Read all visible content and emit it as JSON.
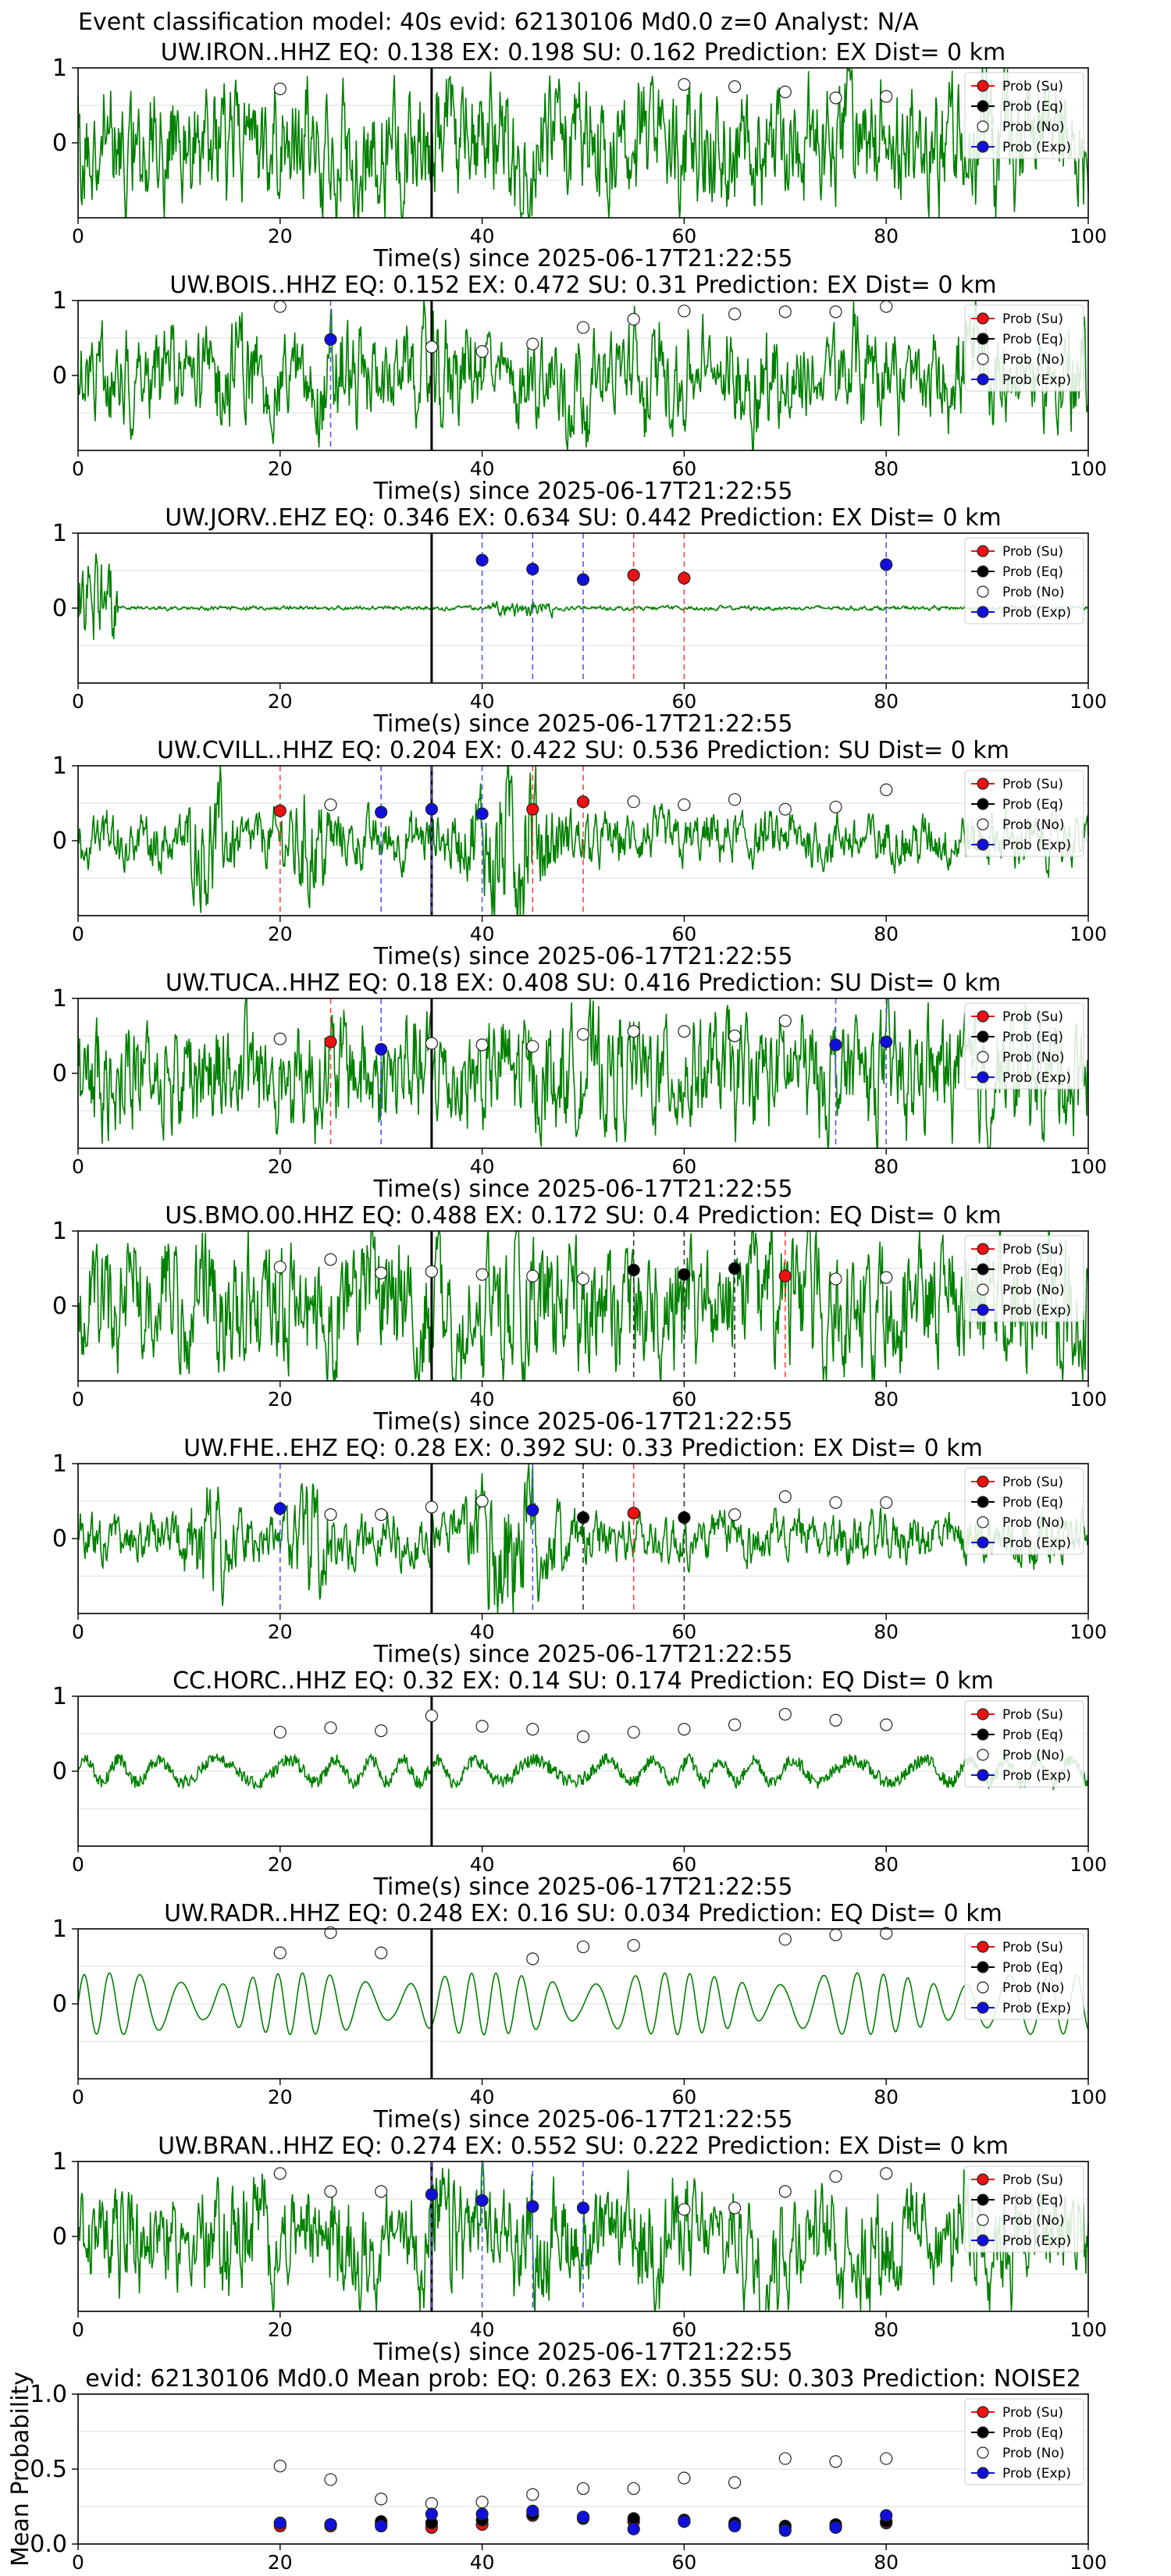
{
  "suptitle": "Event classification model: 40s evid: 62130106 Md0.0 z=0 Analyst: N/A",
  "colors": {
    "trace": "#008000",
    "su": "#ee1111",
    "eq": "#000000",
    "no": "#ffffff",
    "exp": "#1010dd",
    "pick": "#000000",
    "line_su": "#ff4444",
    "line_eq": "#333333",
    "line_exp": "#5555ff",
    "grid": "#dddddd"
  },
  "legend": [
    "Prob (Su)",
    "Prob (Eq)",
    "Prob (No)",
    "Prob (Exp)"
  ],
  "chart_data": [
    {
      "type": "line",
      "title": "UW.IRON..HHZ   EQ: 0.138  EX: 0.198  SU: 0.162   Prediction: EX    Dist= 0 km",
      "xlabel": "Time(s) since 2025-06-17T21:22:55",
      "ylabel": "",
      "xlim": [
        0,
        100
      ],
      "ylim": [
        -1,
        1
      ],
      "xticks": [
        0,
        20,
        40,
        60,
        80,
        100
      ],
      "yticks": [
        0,
        1
      ],
      "pick_time": 35,
      "trace_style": "broadband",
      "trace_amp": 0.75,
      "trace_seed": 11,
      "points": [
        [
          20,
          "no",
          0.72
        ],
        [
          60,
          "no",
          0.78
        ],
        [
          65,
          "no",
          0.75
        ],
        [
          70,
          "no",
          0.68
        ],
        [
          75,
          "no",
          0.6
        ],
        [
          80,
          "no",
          0.62
        ]
      ]
    },
    {
      "type": "line",
      "title": "UW.BOIS..HHZ   EQ: 0.152  EX: 0.472  SU: 0.31   Prediction: EX    Dist= 0 km",
      "xlabel": "Time(s) since 2025-06-17T21:22:55",
      "ylabel": "",
      "xlim": [
        0,
        100
      ],
      "ylim": [
        -1,
        1
      ],
      "xticks": [
        0,
        20,
        40,
        60,
        80,
        100
      ],
      "yticks": [
        0,
        1
      ],
      "pick_time": 35,
      "trace_style": "mixed",
      "trace_amp": 0.7,
      "trace_seed": 23,
      "points": [
        [
          20,
          "no",
          0.92
        ],
        [
          25,
          "exp",
          0.48
        ],
        [
          35,
          "no",
          0.38
        ],
        [
          40,
          "no",
          0.32
        ],
        [
          45,
          "no",
          0.42
        ],
        [
          50,
          "no",
          0.64
        ],
        [
          55,
          "no",
          0.75
        ],
        [
          60,
          "no",
          0.86
        ],
        [
          65,
          "no",
          0.82
        ],
        [
          70,
          "no",
          0.85
        ],
        [
          75,
          "no",
          0.85
        ],
        [
          80,
          "no",
          0.92
        ]
      ]
    },
    {
      "type": "line",
      "title": "UW.JORV..EHZ   EQ: 0.346  EX: 0.634  SU: 0.442   Prediction: EX    Dist= 0 km",
      "xlabel": "Time(s) since 2025-06-17T21:22:55",
      "ylabel": "",
      "xlim": [
        0,
        100
      ],
      "ylim": [
        -1,
        1
      ],
      "xticks": [
        0,
        20,
        40,
        60,
        80,
        100
      ],
      "yticks": [
        0,
        1
      ],
      "pick_time": 35,
      "trace_style": "quiet",
      "trace_amp": 0.6,
      "trace_seed": 37,
      "points": [
        [
          40,
          "exp",
          0.64
        ],
        [
          45,
          "exp",
          0.52
        ],
        [
          50,
          "exp",
          0.38
        ],
        [
          55,
          "su",
          0.44
        ],
        [
          60,
          "su",
          0.4
        ],
        [
          80,
          "exp",
          0.58
        ]
      ]
    },
    {
      "type": "line",
      "title": "UW.CVILL..HHZ   EQ: 0.204  EX: 0.422  SU: 0.536   Prediction: SU    Dist= 0 km",
      "xlabel": "Time(s) since 2025-06-17T21:22:55",
      "ylabel": "",
      "xlim": [
        0,
        100
      ],
      "ylim": [
        -1,
        1
      ],
      "xticks": [
        0,
        20,
        40,
        60,
        80,
        100
      ],
      "yticks": [
        0,
        1
      ],
      "pick_time": 35,
      "trace_style": "burst",
      "trace_amp": 0.9,
      "trace_seed": 41,
      "points": [
        [
          20,
          "su",
          0.4
        ],
        [
          25,
          "no",
          0.48
        ],
        [
          30,
          "exp",
          0.38
        ],
        [
          35,
          "exp",
          0.42
        ],
        [
          40,
          "exp",
          0.36
        ],
        [
          45,
          "su",
          0.42
        ],
        [
          50,
          "su",
          0.52
        ],
        [
          55,
          "no",
          0.52
        ],
        [
          60,
          "no",
          0.48
        ],
        [
          65,
          "no",
          0.55
        ],
        [
          70,
          "no",
          0.42
        ],
        [
          75,
          "no",
          0.45
        ],
        [
          80,
          "no",
          0.68
        ]
      ]
    },
    {
      "type": "line",
      "title": "UW.TUCA..HHZ   EQ: 0.18  EX: 0.408  SU: 0.416   Prediction: SU    Dist= 0 km",
      "xlabel": "Time(s) since 2025-06-17T21:22:55",
      "ylabel": "",
      "xlim": [
        0,
        100
      ],
      "ylim": [
        -1,
        1
      ],
      "xticks": [
        0,
        20,
        40,
        60,
        80,
        100
      ],
      "yticks": [
        0,
        1
      ],
      "pick_time": 35,
      "trace_style": "broadband",
      "trace_amp": 0.7,
      "trace_seed": 53,
      "points": [
        [
          20,
          "no",
          0.46
        ],
        [
          25,
          "su",
          0.42
        ],
        [
          30,
          "exp",
          0.32
        ],
        [
          35,
          "no",
          0.4
        ],
        [
          40,
          "no",
          0.38
        ],
        [
          45,
          "no",
          0.36
        ],
        [
          50,
          "no",
          0.52
        ],
        [
          55,
          "no",
          0.56
        ],
        [
          60,
          "no",
          0.56
        ],
        [
          65,
          "no",
          0.5
        ],
        [
          70,
          "no",
          0.7
        ],
        [
          75,
          "exp",
          0.38
        ],
        [
          80,
          "exp",
          0.42
        ]
      ]
    },
    {
      "type": "line",
      "title": "US.BMO.00.HHZ   EQ: 0.488  EX: 0.172  SU: 0.4   Prediction: EQ    Dist= 0 km",
      "xlabel": "Time(s) since 2025-06-17T21:22:55",
      "ylabel": "",
      "xlim": [
        0,
        100
      ],
      "ylim": [
        -1,
        1
      ],
      "xticks": [
        0,
        20,
        40,
        60,
        80,
        100
      ],
      "yticks": [
        0,
        1
      ],
      "pick_time": 35,
      "trace_style": "broadband",
      "trace_amp": 0.8,
      "trace_seed": 67,
      "points": [
        [
          20,
          "no",
          0.52
        ],
        [
          25,
          "no",
          0.62
        ],
        [
          30,
          "no",
          0.44
        ],
        [
          35,
          "no",
          0.46
        ],
        [
          40,
          "no",
          0.42
        ],
        [
          45,
          "no",
          0.4
        ],
        [
          50,
          "no",
          0.36
        ],
        [
          55,
          "eq",
          0.48
        ],
        [
          60,
          "eq",
          0.42
        ],
        [
          65,
          "eq",
          0.5
        ],
        [
          70,
          "su",
          0.4
        ],
        [
          75,
          "no",
          0.36
        ],
        [
          80,
          "no",
          0.38
        ]
      ]
    },
    {
      "type": "line",
      "title": "UW.FHE..EHZ   EQ: 0.28  EX: 0.392  SU: 0.33   Prediction: EX    Dist= 0 km",
      "xlabel": "Time(s) since 2025-06-17T21:22:55",
      "ylabel": "",
      "xlim": [
        0,
        100
      ],
      "ylim": [
        -1,
        1
      ],
      "xticks": [
        0,
        20,
        40,
        60,
        80,
        100
      ],
      "yticks": [
        0,
        1
      ],
      "pick_time": 35,
      "trace_style": "burst",
      "trace_amp": 0.85,
      "trace_seed": 79,
      "points": [
        [
          20,
          "exp",
          0.4
        ],
        [
          25,
          "no",
          0.32
        ],
        [
          30,
          "no",
          0.32
        ],
        [
          35,
          "no",
          0.42
        ],
        [
          40,
          "no",
          0.5
        ],
        [
          45,
          "exp",
          0.38
        ],
        [
          50,
          "eq",
          0.28
        ],
        [
          55,
          "su",
          0.34
        ],
        [
          60,
          "eq",
          0.28
        ],
        [
          65,
          "no",
          0.32
        ],
        [
          70,
          "no",
          0.56
        ],
        [
          75,
          "no",
          0.48
        ],
        [
          80,
          "no",
          0.48
        ]
      ]
    },
    {
      "type": "line",
      "title": "CC.HORC..HHZ   EQ: 0.32  EX: 0.14  SU: 0.174   Prediction: EQ    Dist= 0 km",
      "xlabel": "Time(s) since 2025-06-17T21:22:55",
      "ylabel": "",
      "xlim": [
        0,
        100
      ],
      "ylim": [
        -1,
        1
      ],
      "xticks": [
        0,
        20,
        40,
        60,
        80,
        100
      ],
      "yticks": [
        0,
        1
      ],
      "pick_time": 35,
      "trace_style": "swell",
      "trace_amp": 0.5,
      "trace_seed": 83,
      "points": [
        [
          20,
          "no",
          0.52
        ],
        [
          25,
          "no",
          0.58
        ],
        [
          30,
          "no",
          0.54
        ],
        [
          35,
          "no",
          0.74
        ],
        [
          40,
          "no",
          0.6
        ],
        [
          45,
          "no",
          0.56
        ],
        [
          50,
          "no",
          0.46
        ],
        [
          55,
          "no",
          0.52
        ],
        [
          60,
          "no",
          0.56
        ],
        [
          65,
          "no",
          0.62
        ],
        [
          70,
          "no",
          0.76
        ],
        [
          75,
          "no",
          0.68
        ],
        [
          80,
          "no",
          0.62
        ]
      ]
    },
    {
      "type": "line",
      "title": "UW.RADR..HHZ   EQ: 0.248  EX: 0.16  SU: 0.034   Prediction: EQ    Dist= 0 km",
      "xlabel": "Time(s) since 2025-06-17T21:22:55",
      "ylabel": "",
      "xlim": [
        0,
        100
      ],
      "ylim": [
        -1,
        1
      ],
      "xticks": [
        0,
        20,
        40,
        60,
        80,
        100
      ],
      "yticks": [
        0,
        1
      ],
      "pick_time": 35,
      "trace_style": "smooth",
      "trace_amp": 0.75,
      "trace_seed": 97,
      "points": [
        [
          20,
          "no",
          0.68
        ],
        [
          25,
          "no",
          0.95
        ],
        [
          30,
          "no",
          0.68
        ],
        [
          45,
          "no",
          0.6
        ],
        [
          50,
          "no",
          0.76
        ],
        [
          55,
          "no",
          0.78
        ],
        [
          70,
          "no",
          0.86
        ],
        [
          75,
          "no",
          0.92
        ],
        [
          80,
          "no",
          0.94
        ]
      ]
    },
    {
      "type": "line",
      "title": "UW.BRAN..HHZ   EQ: 0.274  EX: 0.552  SU: 0.222   Prediction: EX    Dist= 0 km",
      "xlabel": "Time(s) since 2025-06-17T21:22:55",
      "ylabel": "",
      "xlim": [
        0,
        100
      ],
      "ylim": [
        -1,
        1
      ],
      "xticks": [
        0,
        20,
        40,
        60,
        80,
        100
      ],
      "yticks": [
        0,
        1
      ],
      "pick_time": 35,
      "trace_style": "mixed",
      "trace_amp": 0.75,
      "trace_seed": 101,
      "points": [
        [
          20,
          "no",
          0.84
        ],
        [
          25,
          "no",
          0.6
        ],
        [
          30,
          "no",
          0.6
        ],
        [
          35,
          "exp",
          0.56
        ],
        [
          40,
          "exp",
          0.48
        ],
        [
          45,
          "exp",
          0.4
        ],
        [
          50,
          "exp",
          0.38
        ],
        [
          60,
          "no",
          0.36
        ],
        [
          65,
          "no",
          0.38
        ],
        [
          70,
          "no",
          0.6
        ],
        [
          75,
          "no",
          0.8
        ],
        [
          80,
          "no",
          0.84
        ]
      ]
    },
    {
      "type": "scatter",
      "title": "evid: 62130106  Md0.0   Mean prob:   EQ: 0.263  EX: 0.355  SU: 0.303   Prediction: NOISE2",
      "xlabel": "",
      "ylabel": "Mean Probability",
      "xlim": [
        0,
        100
      ],
      "ylim": [
        0,
        1
      ],
      "xticks": [
        0,
        20,
        40,
        60,
        80,
        100
      ],
      "yticks": [
        0.0,
        0.5,
        1.0
      ],
      "series": [
        {
          "name": "Prob (Su)",
          "kind": "su",
          "x": [
            20,
            25,
            30,
            35,
            40,
            45,
            50,
            55,
            60,
            65,
            70,
            75,
            80
          ],
          "y": [
            0.12,
            0.12,
            0.13,
            0.11,
            0.13,
            0.19,
            0.18,
            0.15,
            0.15,
            0.13,
            0.11,
            0.12,
            0.14
          ]
        },
        {
          "name": "Prob (Eq)",
          "kind": "eq",
          "x": [
            20,
            25,
            30,
            35,
            40,
            45,
            50,
            55,
            60,
            65,
            70,
            75,
            80
          ],
          "y": [
            0.14,
            0.13,
            0.15,
            0.14,
            0.16,
            0.2,
            0.17,
            0.17,
            0.16,
            0.14,
            0.12,
            0.13,
            0.15
          ]
        },
        {
          "name": "Prob (No)",
          "kind": "no",
          "x": [
            20,
            25,
            30,
            35,
            40,
            45,
            50,
            55,
            60,
            65,
            70,
            75,
            80
          ],
          "y": [
            0.52,
            0.43,
            0.3,
            0.27,
            0.28,
            0.33,
            0.37,
            0.37,
            0.44,
            0.41,
            0.57,
            0.55,
            0.57
          ]
        },
        {
          "name": "Prob (Exp)",
          "kind": "exp",
          "x": [
            20,
            25,
            30,
            35,
            40,
            45,
            50,
            55,
            60,
            65,
            70,
            75,
            80
          ],
          "y": [
            0.14,
            0.13,
            0.12,
            0.2,
            0.2,
            0.22,
            0.18,
            0.1,
            0.15,
            0.12,
            0.09,
            0.11,
            0.19
          ]
        }
      ]
    }
  ]
}
